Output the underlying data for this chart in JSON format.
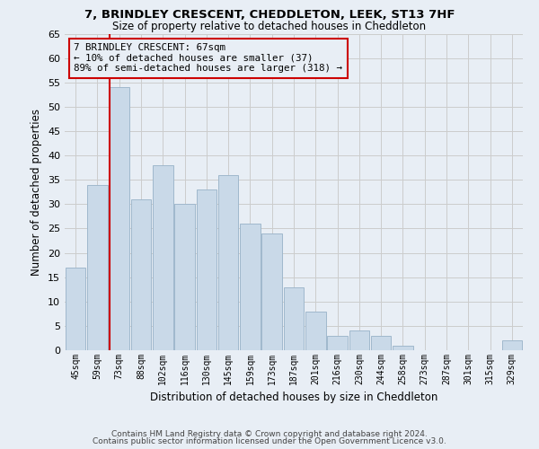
{
  "title": "7, BRINDLEY CRESCENT, CHEDDLETON, LEEK, ST13 7HF",
  "subtitle": "Size of property relative to detached houses in Cheddleton",
  "xlabel": "Distribution of detached houses by size in Cheddleton",
  "ylabel": "Number of detached properties",
  "categories": [
    "45sqm",
    "59sqm",
    "73sqm",
    "88sqm",
    "102sqm",
    "116sqm",
    "130sqm",
    "145sqm",
    "159sqm",
    "173sqm",
    "187sqm",
    "201sqm",
    "216sqm",
    "230sqm",
    "244sqm",
    "258sqm",
    "273sqm",
    "287sqm",
    "301sqm",
    "315sqm",
    "329sqm"
  ],
  "values": [
    17,
    34,
    54,
    31,
    38,
    30,
    33,
    36,
    26,
    24,
    13,
    8,
    3,
    4,
    3,
    1,
    0,
    0,
    0,
    0,
    2
  ],
  "bar_color": "#c9d9e8",
  "bar_edge_color": "#a0b8cc",
  "grid_color": "#cccccc",
  "bg_color": "#e8eef5",
  "vline_color": "#cc0000",
  "annotation_text": "7 BRINDLEY CRESCENT: 67sqm\n← 10% of detached houses are smaller (37)\n89% of semi-detached houses are larger (318) →",
  "annotation_box_color": "#cc0000",
  "footer1": "Contains HM Land Registry data © Crown copyright and database right 2024.",
  "footer2": "Contains public sector information licensed under the Open Government Licence v3.0.",
  "ylim": [
    0,
    65
  ],
  "yticks": [
    0,
    5,
    10,
    15,
    20,
    25,
    30,
    35,
    40,
    45,
    50,
    55,
    60,
    65
  ]
}
